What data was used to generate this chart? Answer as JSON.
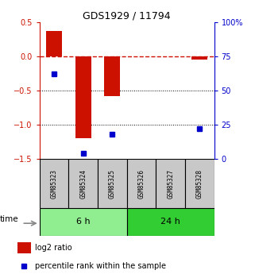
{
  "title": "GDS1929 / 11794",
  "samples": [
    "GSM85323",
    "GSM85324",
    "GSM85325",
    "GSM85326",
    "GSM85327",
    "GSM85328"
  ],
  "log2_ratio": [
    0.37,
    -1.2,
    -0.58,
    0.0,
    0.0,
    -0.05
  ],
  "percentile_rank": [
    62,
    4,
    18,
    null,
    null,
    22
  ],
  "ylim_left": [
    -1.5,
    0.5
  ],
  "ylim_right": [
    0,
    100
  ],
  "yticks_left": [
    -1.5,
    -1.0,
    -0.5,
    0.0,
    0.5
  ],
  "yticks_right": [
    0,
    25,
    50,
    75,
    100
  ],
  "groups": [
    {
      "label": "6 h",
      "samples": [
        0,
        1,
        2
      ],
      "color": "#90EE90"
    },
    {
      "label": "24 h",
      "samples": [
        3,
        4,
        5
      ],
      "color": "#32CD32"
    }
  ],
  "bar_color": "#CC1100",
  "dot_color": "#0000CC",
  "zero_line_color": "#CC1100",
  "bg_color": "#FFFFFF",
  "bar_width": 0.55,
  "time_label": "time",
  "legend_items": [
    "log2 ratio",
    "percentile rank within the sample"
  ],
  "sample_box_color": "#C8C8C8"
}
